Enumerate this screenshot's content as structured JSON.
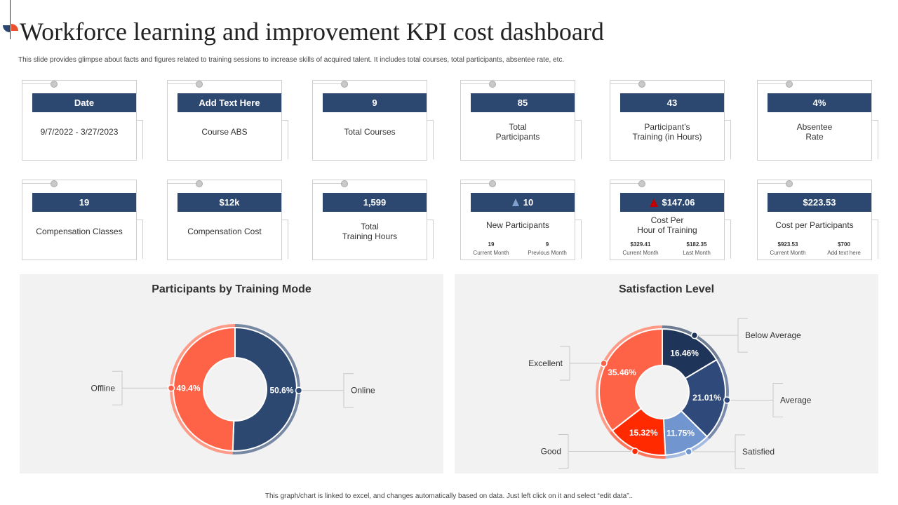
{
  "header": {
    "title": "Workforce learning and improvement KPI cost dashboard",
    "subtitle": "This slide provides glimpse about facts and figures related to training sessions to increase skills of acquired talent. It includes total courses, total participants, absentee rate, etc."
  },
  "kpis_row1": [
    {
      "value": "Date",
      "label": "9/7/2022 - 3/27/2023"
    },
    {
      "value": "Add Text Here",
      "label": "Course ABS"
    },
    {
      "value": "9",
      "label": "Total Courses"
    },
    {
      "value": "85",
      "label": "Total\nParticipants"
    },
    {
      "value": "43",
      "label": "Participant’s\nTraining (in Hours)"
    },
    {
      "value": "4%",
      "label": "Absentee\nRate"
    }
  ],
  "kpis_row2": [
    {
      "value": "19",
      "label": "Compensation Classes"
    },
    {
      "value": "$12k",
      "label": "Compensation Cost"
    },
    {
      "value": "1,599",
      "label": "Total\nTraining Hours"
    },
    {
      "value": "10",
      "label": "New Participants",
      "icon": "triangle-up-icon",
      "icon_color": "#7f9fcf",
      "sub": [
        {
          "value": "19",
          "caption": "Current Month"
        },
        {
          "value": "9",
          "caption": "Previous Month"
        }
      ]
    },
    {
      "value": "$147.06",
      "label": "Cost Per\nHour of Training",
      "icon": "triangle-up-red-icon",
      "icon_color": "#c00000",
      "sub": [
        {
          "value": "$329.41",
          "caption": "Current Month"
        },
        {
          "value": "$182.35",
          "caption": "Last Month"
        }
      ]
    },
    {
      "value": "$223.53",
      "label": "Cost per Participants",
      "sub": [
        {
          "value": "$923.53",
          "caption": "Current Month"
        },
        {
          "value": "$700",
          "caption": "Add text here"
        }
      ]
    }
  ],
  "chart_data": [
    {
      "type": "pie",
      "title": "Participants by Training Mode",
      "categories": [
        "Online",
        "Offline"
      ],
      "values": [
        50.6,
        49.4
      ],
      "unit": "%",
      "colors": [
        "#2d4870",
        "#ff6347"
      ]
    },
    {
      "type": "pie",
      "title": "Satisfaction Level",
      "categories": [
        "Below Average",
        "Average",
        "Satisfied",
        "Good",
        "Excellent"
      ],
      "values": [
        16.46,
        21.01,
        11.75,
        15.32,
        35.46
      ],
      "unit": "%",
      "colors": [
        "#1f3459",
        "#2f4a7a",
        "#7196cf",
        "#ff2a00",
        "#ff6347"
      ]
    }
  ],
  "footer": {
    "note": "This graph/chart is linked to excel, and changes automatically based on data. Just left click on it and select “edit data”.."
  }
}
